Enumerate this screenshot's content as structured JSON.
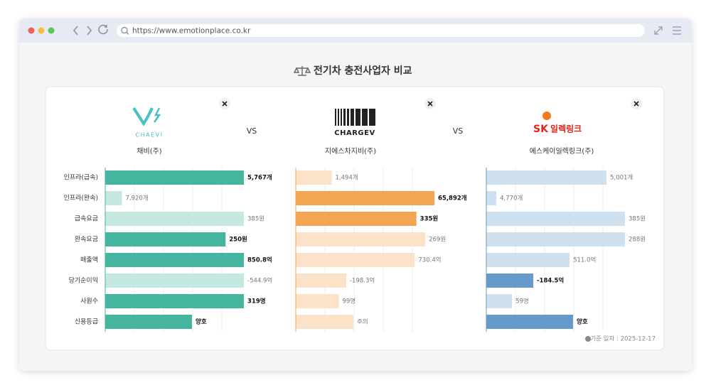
{
  "browser": {
    "url": "https://www.emotionplace.co.kr"
  },
  "page": {
    "title": "전기차 충전사업자 비교",
    "separators": [
      "VS",
      "VS"
    ],
    "metrics": [
      "인프라(급속)",
      "인프라(완속)",
      "급속요금",
      "완속요금",
      "매출액",
      "당기순이익",
      "사원수",
      "신용등급"
    ],
    "companies": [
      {
        "name": "채비(주)",
        "logo_text": [
          "CHAEVI"
        ],
        "color": "#45b5a0",
        "light_color": "#c5e8e0",
        "values": [
          5767,
          7920,
          385,
          250,
          850.8,
          -544.9,
          319,
          null
        ],
        "value_labels": [
          "5,767개",
          "7,920개",
          "385원",
          "250원",
          "850.8억",
          "-544.9억",
          "319명",
          "양호"
        ],
        "highlight": [
          true,
          false,
          false,
          true,
          true,
          false,
          true,
          true
        ]
      },
      {
        "name": "지에스차지비(주)",
        "logo_text": [
          "CHARGEV"
        ],
        "color": "#f2a654",
        "light_color": "#fbe2c8",
        "values": [
          1494,
          65892,
          335,
          269,
          730.4,
          -198.3,
          99,
          null
        ],
        "value_labels": [
          "1,494개",
          "65,892개",
          "335원",
          "269원",
          "730.4억",
          "-198.3억",
          "99명",
          "주의"
        ],
        "highlight": [
          false,
          true,
          true,
          false,
          false,
          false,
          false,
          false
        ]
      },
      {
        "name": "에스케이일렉링크(주)",
        "logo_text": [
          "SK",
          "일렉링크"
        ],
        "color": "#6699cc",
        "light_color": "#cfe0ef",
        "values": [
          5001,
          4770,
          385,
          288,
          511.0,
          -184.5,
          59,
          null
        ],
        "value_labels": [
          "5,001개",
          "4,770개",
          "385원",
          "288원",
          "511.0억",
          "-184.5억",
          "59명",
          "양호"
        ],
        "highlight": [
          false,
          false,
          false,
          false,
          false,
          true,
          false,
          true
        ]
      }
    ],
    "footer": "기준 일자 : 2025-12-17"
  }
}
